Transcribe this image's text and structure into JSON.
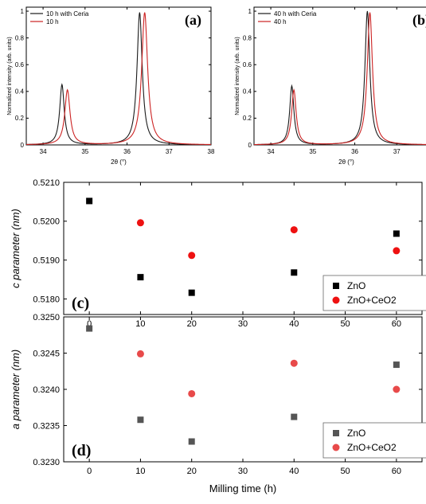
{
  "chart_data": [
    {
      "id": "a",
      "type": "line",
      "panel_label": "(a)",
      "xlabel": "2θ (°)",
      "ylabel": "Normalized intensity (arb. units)",
      "xlim": [
        33.6,
        38.0
      ],
      "ylim": [
        0.0,
        1.03
      ],
      "xticks": [
        34,
        35,
        36,
        37,
        38
      ],
      "yticks": [
        0.0,
        0.2,
        0.4,
        0.6,
        0.8,
        1.0
      ],
      "legend_position": "top-left",
      "series": [
        {
          "name": "10 h with Ceria",
          "color": "#1a1a1a",
          "peaks": [
            {
              "center": 34.45,
              "height": 0.45,
              "fwhm": 0.13
            },
            {
              "center": 36.3,
              "height": 0.99,
              "fwhm": 0.15
            }
          ]
        },
        {
          "name": "10 h",
          "color": "#cc2222",
          "peaks": [
            {
              "center": 34.58,
              "height": 0.41,
              "fwhm": 0.15
            },
            {
              "center": 36.42,
              "height": 0.99,
              "fwhm": 0.17
            }
          ]
        }
      ]
    },
    {
      "id": "b",
      "type": "line",
      "panel_label": "(b)",
      "xlabel": "2θ (°)",
      "ylabel": "Normalized intensity (arb. units)",
      "xlim": [
        33.6,
        38.0
      ],
      "ylim": [
        0.0,
        1.03
      ],
      "xticks": [
        34,
        35,
        36,
        37,
        38
      ],
      "yticks": [
        0.0,
        0.2,
        0.4,
        0.6,
        0.8,
        1.0
      ],
      "legend_position": "top-left",
      "series": [
        {
          "name": "40 h with Ceria",
          "color": "#1a1a1a",
          "peaks": [
            {
              "center": 34.5,
              "height": 0.44,
              "fwhm": 0.12
            },
            {
              "center": 36.3,
              "height": 1.0,
              "fwhm": 0.14
            }
          ]
        },
        {
          "name": "40 h",
          "color": "#cc2222",
          "peaks": [
            {
              "center": 34.55,
              "height": 0.41,
              "fwhm": 0.13
            },
            {
              "center": 36.36,
              "height": 0.99,
              "fwhm": 0.15
            }
          ]
        }
      ]
    },
    {
      "id": "c",
      "type": "scatter",
      "panel_label": "(c)",
      "xlabel": "",
      "ylabel": "c parameter (nm)",
      "xlim": [
        -5,
        65
      ],
      "ylim": [
        0.5176,
        0.521
      ],
      "xticks": [
        0,
        10,
        20,
        30,
        40,
        50,
        60
      ],
      "yticks": [
        0.518,
        0.519,
        0.52,
        0.521
      ],
      "ytick_labels": [
        "0.5180",
        "0.5190",
        "0.5200",
        "0.5210"
      ],
      "legend_position": "bottom-right",
      "series": [
        {
          "name": "ZnO",
          "marker": "square",
          "color": "#000000",
          "x": [
            0,
            10,
            20,
            40,
            60
          ],
          "y": [
            0.52052,
            0.51856,
            0.51816,
            0.51868,
            0.51968
          ]
        },
        {
          "name": "ZnO+CeO2",
          "marker": "circle",
          "color": "#ee1111",
          "x": [
            10,
            20,
            40,
            60
          ],
          "y": [
            0.51996,
            0.51912,
            0.51978,
            0.51924
          ]
        }
      ]
    },
    {
      "id": "d",
      "type": "scatter",
      "panel_label": "(d)",
      "xlabel": "Milling time (h)",
      "ylabel": "a parameter (nm)",
      "xlim": [
        -5,
        65
      ],
      "ylim": [
        0.323,
        0.325
      ],
      "xticks": [
        0,
        10,
        20,
        30,
        40,
        50,
        60
      ],
      "yticks": [
        0.323,
        0.3235,
        0.324,
        0.3245,
        0.325
      ],
      "ytick_labels": [
        "0.3230",
        "0.3235",
        "0.3240",
        "0.3245",
        "0.3250"
      ],
      "legend_position": "bottom-right",
      "series": [
        {
          "name": "ZnO",
          "marker": "square",
          "color": "#555555",
          "x": [
            0,
            10,
            20,
            40,
            60
          ],
          "y": [
            0.32484,
            0.32358,
            0.32328,
            0.32362,
            0.32434
          ]
        },
        {
          "name": "ZnO+CeO2",
          "marker": "circle",
          "color": "#e84a4a",
          "x": [
            10,
            20,
            40,
            60
          ],
          "y": [
            0.32449,
            0.32394,
            0.32436,
            0.324
          ]
        }
      ]
    }
  ]
}
